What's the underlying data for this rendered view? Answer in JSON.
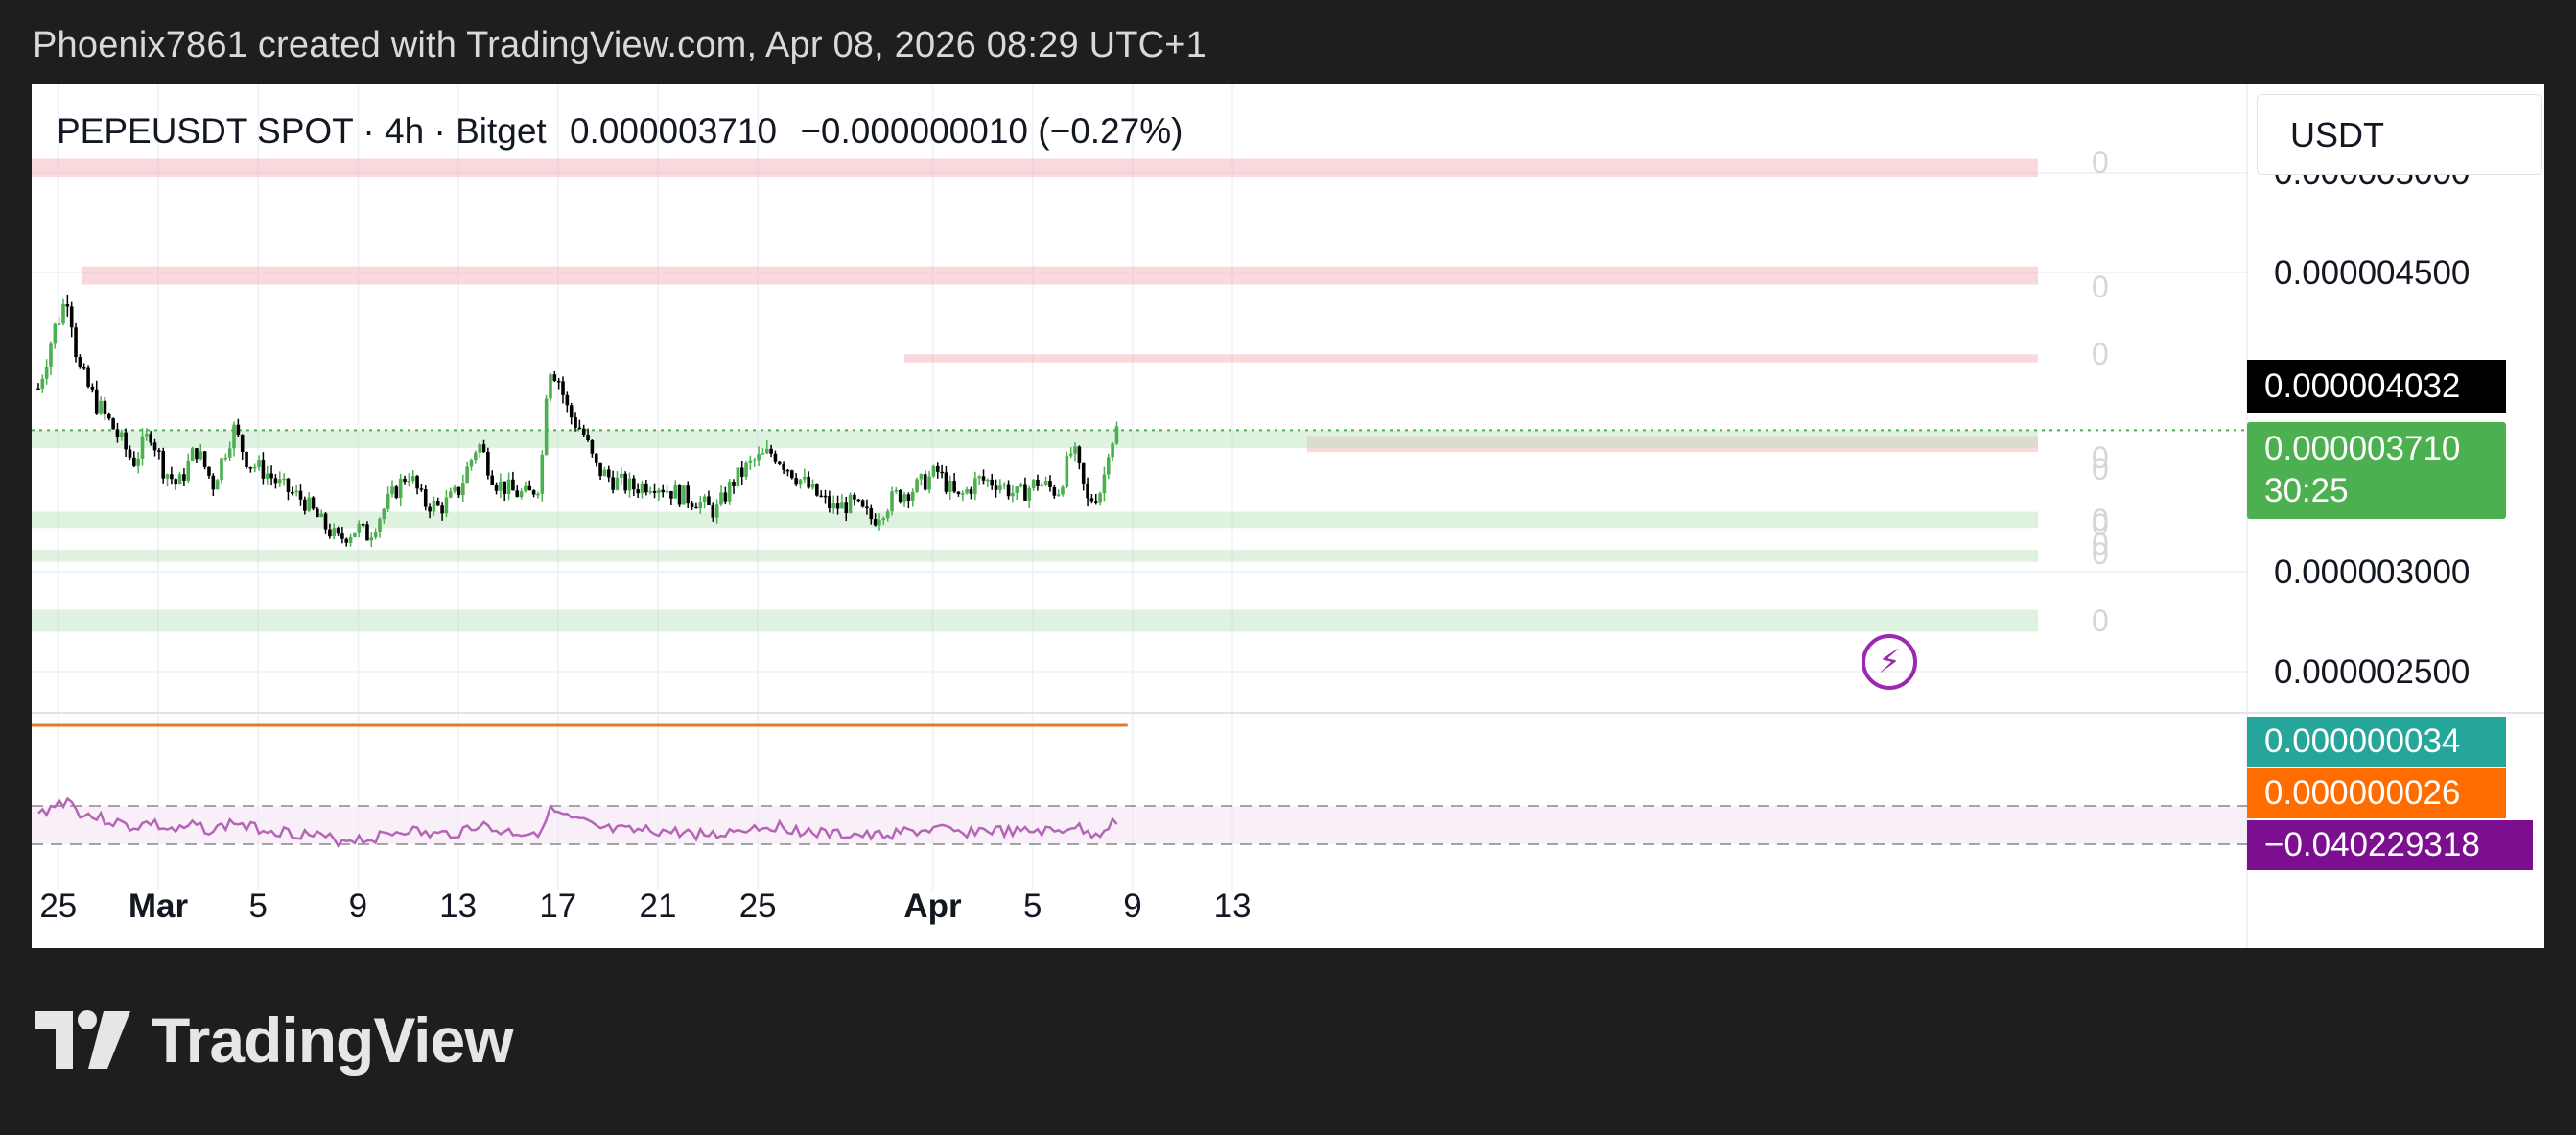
{
  "caption": "Phoenix7861 created with TradingView.com, Apr 08, 2026 08:29 UTC+1",
  "header": {
    "symbol": "PEPEUSDT SPOT",
    "interval": "4h",
    "exchange": "Bitget",
    "last": "0.000003710",
    "change": "−0.000000010",
    "change_pct": "(−0.27%)",
    "separator": " · "
  },
  "currency": "USDT",
  "brand": "TradingView",
  "price_tags": {
    "high_marker": "0.000004032",
    "last_price": "0.000003710",
    "countdown": "30:25",
    "ind_teal": "0.000000034",
    "ind_orange": "0.000000026",
    "ind_purple": "−0.040229318"
  },
  "colors": {
    "up": "#26a69a",
    "up_candle": "#4caf50",
    "down": "#000000",
    "resistance_zone": "#f6b3bb",
    "support_zone": "#b8e0b8",
    "orange_line": "#e8782a",
    "rsi_line": "#b565b5",
    "teal_tag": "#26a69a",
    "orange_tag": "#ff6d00",
    "purple_tag": "#7b0f8f",
    "last_tag": "#4caf50"
  },
  "zone_labels": [
    "0",
    "0",
    "0",
    "0",
    "0",
    "0",
    "0",
    "0",
    "0",
    "0"
  ],
  "chart_data": {
    "type": "candlestick",
    "title": "PEPEUSDT SPOT · 4h · Bitget",
    "y_axis_ticks": [
      "0.000005000",
      "0.000004500",
      "0.000003000",
      "0.000002500"
    ],
    "y_axis_tick_values": [
      5e-06,
      4.5e-06,
      3e-06,
      2.5e-06
    ],
    "ylim": [
      2.38e-06,
      5.3e-06
    ],
    "x_axis_ticks": [
      "25",
      "Mar",
      "5",
      "9",
      "13",
      "17",
      "21",
      "25",
      "Apr",
      "5",
      "9",
      "13"
    ],
    "x_axis_tick_days": [
      -4,
      0,
      4,
      8,
      12,
      16,
      20,
      24,
      31,
      35,
      39,
      43
    ],
    "price_path_days": [
      -4.8,
      -4.2,
      -3.6,
      -3.2,
      -2.5,
      -1.8,
      -1.0,
      -0.3,
      0.2,
      0.8,
      1.5,
      2.2,
      3.0,
      3.6,
      4.3,
      5.0,
      5.8,
      6.5,
      7.2,
      8.0,
      8.4,
      9.2,
      10.0,
      10.6,
      11.3,
      12.0,
      12.8,
      13.5,
      14.2,
      14.8,
      15.3,
      15.6,
      16.0,
      16.4,
      17.0,
      17.5,
      18.2,
      19.0,
      19.8,
      20.6,
      21.5,
      22.3,
      23.0,
      23.8,
      24.6,
      25.4,
      26.2,
      27.0,
      27.8,
      28.6,
      29.5,
      30.3,
      31.2,
      32.0,
      32.8,
      33.6,
      34.4,
      35.2,
      36.0,
      36.6,
      37.2,
      37.8,
      38.0,
      38.4
    ],
    "price_path_values": [
      3.92e-06,
      4.2e-06,
      4.4e-06,
      4.02e-06,
      3.85e-06,
      3.72e-06,
      3.55e-06,
      3.7e-06,
      3.52e-06,
      3.43e-06,
      3.62e-06,
      3.44e-06,
      3.72e-06,
      3.55e-06,
      3.5e-06,
      3.42e-06,
      3.36e-06,
      3.25e-06,
      3.16e-06,
      3.22e-06,
      3.18e-06,
      3.35e-06,
      3.5e-06,
      3.35e-06,
      3.32e-06,
      3.4e-06,
      3.65e-06,
      3.45e-06,
      3.4e-06,
      3.38e-06,
      3.45e-06,
      4.05e-06,
      3.98e-06,
      3.8e-06,
      3.7e-06,
      3.52e-06,
      3.46e-06,
      3.42e-06,
      3.45e-06,
      3.4e-06,
      3.36e-06,
      3.3e-06,
      3.45e-06,
      3.55e-06,
      3.6e-06,
      3.5e-06,
      3.4e-06,
      3.32e-06,
      3.34e-06,
      3.26e-06,
      3.38e-06,
      3.42e-06,
      3.5e-06,
      3.36e-06,
      3.46e-06,
      3.45e-06,
      3.38e-06,
      3.45e-06,
      3.4e-06,
      3.62e-06,
      3.35e-06,
      3.42e-06,
      3.62e-06,
      3.72e-06
    ],
    "resistance_zones": [
      [
        4.98e-06,
        5.07e-06
      ],
      [
        4.44e-06,
        4.53e-06
      ],
      [
        4.05e-06,
        4.09e-06
      ],
      [
        3.6e-06,
        3.68e-06
      ]
    ],
    "support_zones": [
      [
        3.62e-06,
        3.71e-06
      ],
      [
        3.22e-06,
        3.3e-06
      ],
      [
        3.05e-06,
        3.11e-06
      ],
      [
        2.7e-06,
        2.81e-06
      ]
    ],
    "reference_line": 3.71e-06,
    "indicator_orange_value": 2.6e-08,
    "indicator_teal_value": 3.4e-08,
    "rsi_band": [
      30,
      70
    ]
  }
}
